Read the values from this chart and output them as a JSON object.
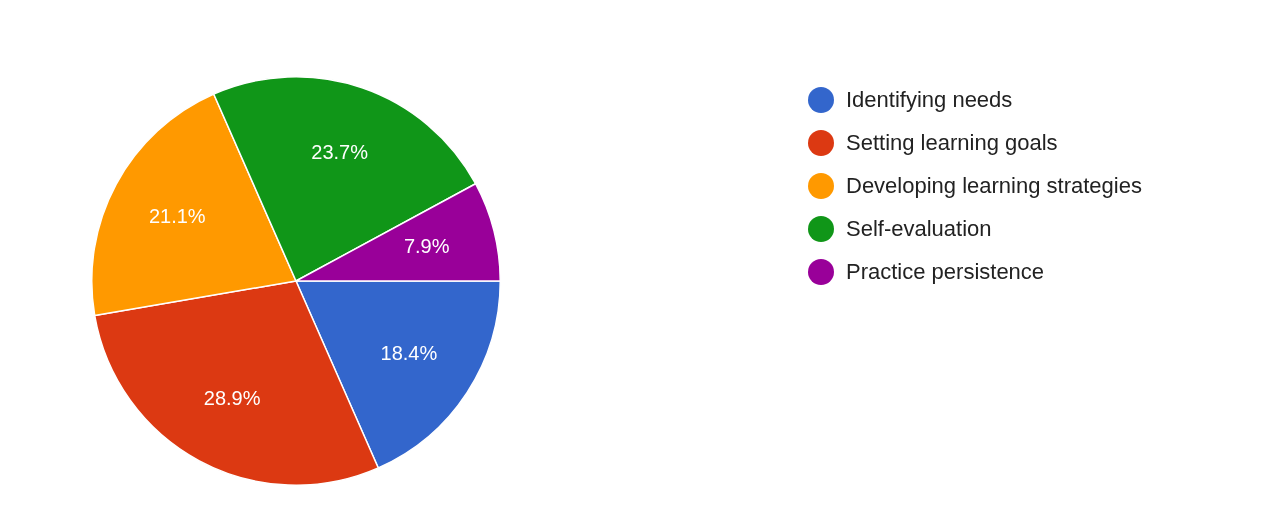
{
  "chart_data": {
    "type": "pie",
    "categories": [
      "Identifying needs",
      "Setting learning goals",
      "Developing learning strategies",
      "Self-evaluation",
      "Practice persistence"
    ],
    "values": [
      18.4,
      28.9,
      21.1,
      23.7,
      7.9
    ],
    "value_labels": [
      "18.4%",
      "28.9%",
      "21.1%",
      "23.7%",
      "7.9%"
    ],
    "colors": [
      "#3366cc",
      "#dc3912",
      "#ff9900",
      "#109618",
      "#990099"
    ],
    "legend": "right"
  }
}
